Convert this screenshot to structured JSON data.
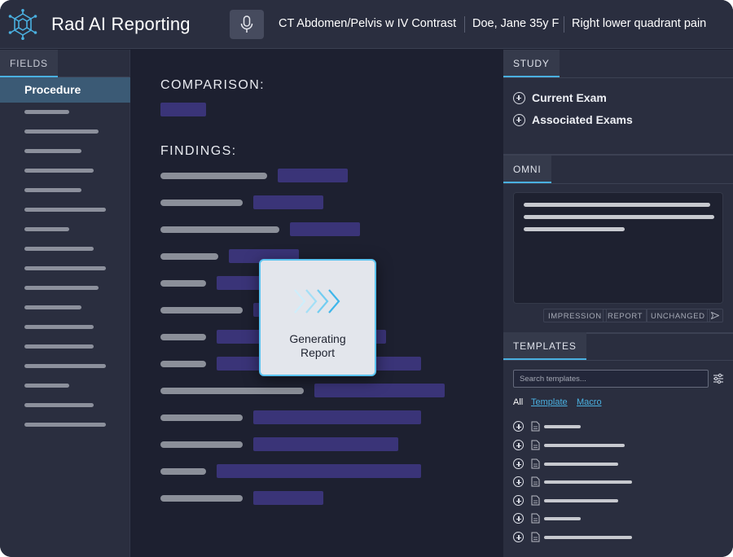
{
  "header": {
    "app_title": "Rad AI Reporting",
    "exam": "CT Abdomen/Pelvis w IV Contrast",
    "patient": "Doe, Jane 35y F",
    "indication": "Right lower quadrant pain"
  },
  "left_panel": {
    "tab": "FIELDS",
    "selected_item": "Procedure"
  },
  "main": {
    "comparison_label": "COMPARISON:",
    "findings_label": "FINDINGS:"
  },
  "modal": {
    "line1": "Generating",
    "line2": "Report"
  },
  "right_panel": {
    "study_tab": "STUDY",
    "study_items": [
      "Current Exam",
      "Associated Exams"
    ],
    "omni_tab": "OMNI",
    "omni_actions": [
      "IMPRESSION",
      "REPORT",
      "UNCHANGED"
    ],
    "templates_tab": "TEMPLATES",
    "search_placeholder": "Search templates...",
    "filters": [
      "All",
      "Template",
      "Macro"
    ]
  },
  "colors": {
    "accent": "#4ab0e0",
    "link": "#4ab0e0",
    "placeholder_purple": "#3a3478",
    "selected_bg": "#3b5a75"
  },
  "icons": [
    "logo-icon",
    "microphone-icon",
    "plus-circle-icon",
    "document-icon",
    "send-icon",
    "filter-sliders-icon",
    "chevron-arrows-icon"
  ]
}
